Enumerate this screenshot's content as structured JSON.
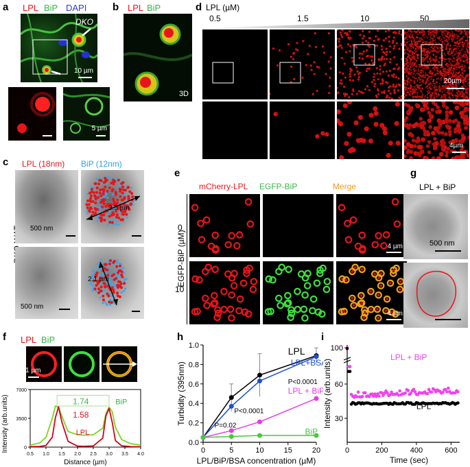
{
  "panel_letters": [
    "a",
    "b",
    "c",
    "d",
    "e",
    "f",
    "g",
    "h",
    "i"
  ],
  "a": {
    "legend": {
      "lpl": "LPL",
      "bip": "BiP",
      "dapi": "DAPI"
    },
    "dko": "DKO",
    "scale_main": "10 µm",
    "scale_inset": "5 µm"
  },
  "b": {
    "legend": {
      "lpl": "LPL",
      "bip": "BiP"
    },
    "tag": "3D"
  },
  "c": {
    "legend": {
      "lpl": "LPL (18nm)",
      "bip": "BiP (12nm)"
    },
    "side_label": "DKO WAT",
    "scale1": "500 nm",
    "scale2": "500 nm",
    "dist1": "3.5 µm",
    "dist2": "2.1 µm"
  },
  "d": {
    "axis_title": "LPL (µM)",
    "concentrations": [
      "0.5",
      "1.5",
      "10",
      "50"
    ],
    "scale_top": "20µm",
    "scale_bottom": "4µm"
  },
  "e": {
    "col_titles": [
      "mCherry-LPL",
      "EGFP-BiP",
      "Merge"
    ],
    "row_axis": "EGFP-BiP (µM)",
    "rows": [
      "0",
      "10"
    ],
    "scale1": "4 µm",
    "scale2": "4 µm"
  },
  "f": {
    "legend": {
      "lpl": "LPL",
      "bip": "BiP"
    },
    "scale": "1 µm",
    "chart_data": {
      "type": "line",
      "xlabel": "Distance (µm)",
      "ylabel": "Intensity (arb.units)",
      "xlim": [
        0.5,
        4.0
      ],
      "ylim": [
        0,
        7000
      ],
      "xticks": [
        "0.5",
        "1.0",
        "1.5",
        "2.0",
        "2.5",
        "3.0",
        "3.5",
        "4.0"
      ],
      "yticks": [
        "0",
        "3500",
        "7000"
      ],
      "series": [
        {
          "name": "BiP",
          "color": "#7ed321",
          "x": [
            0.5,
            0.8,
            1.0,
            1.2,
            1.3,
            1.4,
            1.5,
            1.7,
            2.0,
            2.2,
            2.5,
            2.8,
            2.9,
            3.0,
            3.1,
            3.2,
            3.4,
            3.7,
            4.0
          ],
          "y": [
            250,
            500,
            1200,
            3500,
            5000,
            4800,
            3800,
            1900,
            1500,
            1450,
            1500,
            2300,
            4100,
            4850,
            4300,
            2400,
            900,
            400,
            250
          ]
        },
        {
          "name": "LPL",
          "color": "#d0021b",
          "x": [
            0.5,
            0.8,
            1.0,
            1.2,
            1.3,
            1.4,
            1.5,
            1.7,
            2.0,
            2.2,
            2.5,
            2.8,
            2.9,
            3.0,
            3.1,
            3.2,
            3.4,
            3.7,
            4.0
          ],
          "y": [
            50,
            80,
            200,
            1200,
            3600,
            4900,
            3100,
            700,
            120,
            100,
            140,
            1100,
            3800,
            4700,
            3000,
            800,
            150,
            60,
            40
          ]
        }
      ],
      "annotations": [
        {
          "text": "1.74",
          "label": "BiP",
          "color": "#3cb54a"
        },
        {
          "text": "1.58",
          "label": "LPL",
          "color": "#e8141b"
        }
      ]
    }
  },
  "g": {
    "title": "LPL + BiP",
    "scale": "500 nm"
  },
  "h": {
    "chart_data": {
      "type": "line",
      "xlabel": "LPL/BiP/BSA concentration (µM)",
      "ylabel": "Turbidity (395nm)",
      "xlim": [
        0,
        20
      ],
      "ylim": [
        0,
        1.0
      ],
      "xticks": [
        "0",
        "5",
        "10",
        "15",
        "20"
      ],
      "yticks": [
        "0.0",
        "0.2",
        "0.4",
        "0.6",
        "0.8",
        "1.0"
      ],
      "x": [
        0,
        5,
        10,
        20
      ],
      "series": [
        {
          "name": "LPL",
          "color": "#000000",
          "values": [
            0.05,
            0.46,
            0.69,
            0.89
          ],
          "err": [
            0,
            0.14,
            0.22,
            0.08
          ]
        },
        {
          "name": "LPL+BSA",
          "color": "#1a4fd6",
          "values": [
            0.05,
            0.37,
            0.63,
            0.88
          ]
        },
        {
          "name": "LPL + BiP",
          "color": "#e63ce6",
          "values": [
            0.05,
            0.12,
            0.21,
            0.45
          ]
        },
        {
          "name": "BiP",
          "color": "#46c93a",
          "values": [
            0.05,
            0.06,
            0.07,
            0.07
          ]
        }
      ],
      "pvalues": [
        "P=0.02",
        "P<0.0001",
        "P<0.0001"
      ]
    }
  },
  "i": {
    "chart_data": {
      "type": "scatter",
      "xlabel": "Time (sec)",
      "ylabel": "Intensity (arb.units)",
      "xlim": [
        0,
        650
      ],
      "yticks": [
        "30",
        "60",
        "100"
      ],
      "xticks": [
        "0",
        "200",
        "400",
        "600"
      ],
      "series": [
        {
          "name": "LPL + BiP",
          "color": "#ee44ee",
          "start": 100,
          "plateau": 50.5,
          "rise": 0.006,
          "noise": 2.5
        },
        {
          "name": "LPL",
          "color": "#000000",
          "start": 99,
          "plateau": 43,
          "rise": 0,
          "noise": 0.8
        }
      ]
    }
  }
}
